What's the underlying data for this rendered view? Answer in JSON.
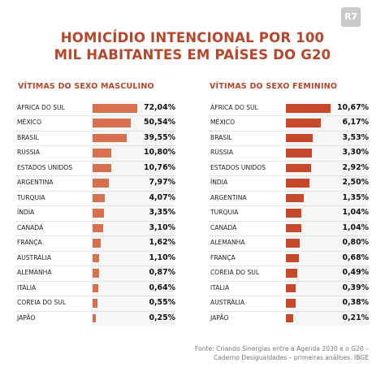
{
  "logo": {
    "text": "R7",
    "color": "#c9c9c9"
  },
  "title": {
    "line1": "HOMICÍDIO INTENCIONAL POR 100",
    "line2": "MIL HABITANTES EM PAÍSES DO G20"
  },
  "colors": {
    "accent": "#b8452a",
    "bar_male": "#d8704f",
    "bar_female": "#c8482c"
  },
  "chart_data": [
    {
      "type": "bar",
      "orientation": "horizontal",
      "title": "VÍTIMAS DO SEXO MASCULINO",
      "categories": [
        "ÁFRICA DO SUL",
        "MÉXICO",
        "BRASIL",
        "RÚSSIA",
        "ESTADOS UNIDOS",
        "ARGENTINA",
        "TURQUIA",
        "ÍNDIA",
        "CANADÁ",
        "FRANÇA",
        "AUSTRÁLIA",
        "ALEMANHA",
        "ITÁLIA",
        "COREIA DO SUL",
        "JAPÃO"
      ],
      "values": [
        72.04,
        50.54,
        39.55,
        10.8,
        10.76,
        7.97,
        4.07,
        3.35,
        3.1,
        1.62,
        1.1,
        0.87,
        0.64,
        0.55,
        0.25
      ],
      "labels": [
        "72,04%",
        "50,54%",
        "39,55%",
        "10,80%",
        "10,76%",
        "7,97%",
        "4,07%",
        "3,35%",
        "3,10%",
        "1,62%",
        "1,10%",
        "0,87%",
        "0,64%",
        "0,55%",
        "0,25%"
      ],
      "scale": "nonlinear (display-compressed)"
    },
    {
      "type": "bar",
      "orientation": "horizontal",
      "title": "VÍTIMAS DO SEXO FEMININO",
      "categories": [
        "ÁFRICA DO SUL",
        "MÉXICO",
        "BRASIL",
        "RÚSSIA",
        "ESTADOS UNIDOS",
        "ÍNDIA",
        "ARGENTINA",
        "TURQUIA",
        "CANADÁ",
        "ALEMANHA",
        "FRANÇA",
        "COREIA DO SUL",
        "ITÁLIA",
        "AUSTRÁLIA",
        "JAPÃO"
      ],
      "values": [
        10.67,
        6.17,
        3.53,
        3.3,
        2.92,
        2.5,
        1.35,
        1.04,
        1.04,
        0.8,
        0.68,
        0.49,
        0.39,
        0.38,
        0.21
      ],
      "labels": [
        "10,67%",
        "6,17%",
        "3,53%",
        "3,30%",
        "2,92%",
        "2,50%",
        "1,35%",
        "1,04%",
        "1,04%",
        "0,80%",
        "0,68%",
        "0,49%",
        "0,39%",
        "0,38%",
        "0,21%"
      ],
      "scale": "nonlinear (display-compressed)"
    }
  ],
  "source": {
    "line1": "Fonte: Criando Sinergias entre a Agenda 2030 e o G20 –",
    "line2": "Caderno Desigualdades – primeiras análises. IBGE"
  }
}
